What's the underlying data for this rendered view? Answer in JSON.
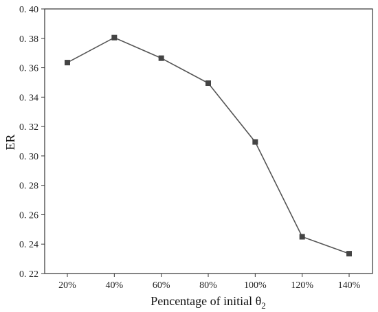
{
  "chart_data": {
    "type": "line",
    "categories": [
      "20%",
      "40%",
      "60%",
      "80%",
      "100%",
      "120%",
      "140%"
    ],
    "values": [
      0.3635,
      0.3805,
      0.3665,
      0.3495,
      0.3095,
      0.245,
      0.2335
    ],
    "xlabel": "Pencentage of initial θ",
    "xlabel_subscript": "2",
    "ylabel": "ER",
    "ylim": [
      0.22,
      0.4
    ],
    "yticks": [
      "0. 22",
      "0. 24",
      "0. 26",
      "0. 28",
      "0. 30",
      "0. 32",
      "0. 34",
      "0. 36",
      "0. 38",
      "0. 40"
    ],
    "grid": false,
    "marker": "square",
    "line_color": "#555555",
    "marker_color": "#444444"
  }
}
